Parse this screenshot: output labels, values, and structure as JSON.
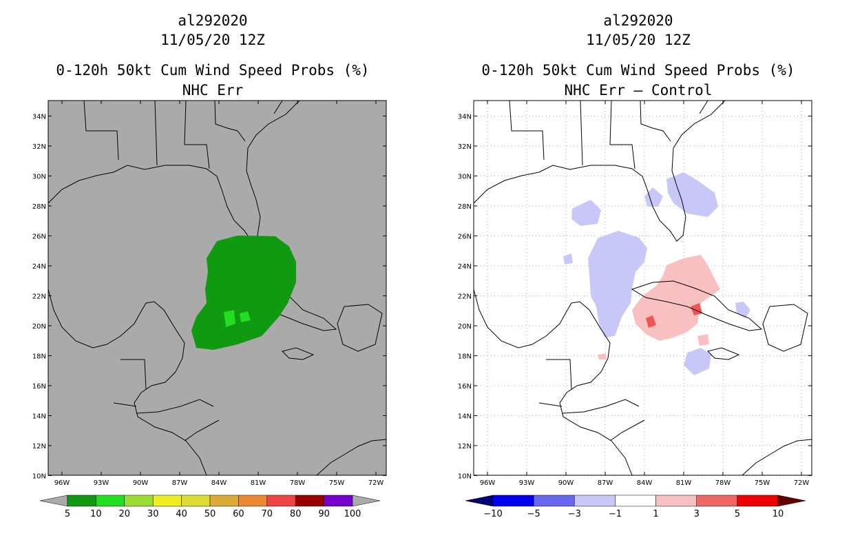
{
  "panels": [
    {
      "storm_id": "al292020",
      "datetime": "11/05/20 12Z",
      "title": "0-120h 50kt Cum Wind Speed Probs (%)",
      "subtitle": "NHC Err",
      "colors": {
        "background": "#aaaaaa",
        "fill": "#119911",
        "fill_core": "#22dd22"
      },
      "colorbar": {
        "labels": [
          "5",
          "10",
          "20",
          "30",
          "40",
          "50",
          "60",
          "70",
          "80",
          "90",
          "100"
        ],
        "colors": [
          "#aaaaaa",
          "#119911",
          "#22dd22",
          "#99dd33",
          "#eeee22",
          "#dddd33",
          "#ddaa33",
          "#ee8833",
          "#ee4444",
          "#990000",
          "#7700cc",
          "#aaaaaa"
        ]
      }
    },
    {
      "storm_id": "al292020",
      "datetime": "11/05/20 12Z",
      "title": "0-120h 50kt Cum Wind Speed Probs (%)",
      "subtitle": "NHC Err – Control",
      "colors": {
        "background": "#ffffff",
        "neg": "#c8c8f8",
        "pos": "#f8c0c0",
        "pos_core": "#ee5555"
      },
      "colorbar": {
        "labels": [
          "−10",
          "−5",
          "−3",
          "−1",
          "1",
          "3",
          "5",
          "10"
        ],
        "colors": [
          "#00007a",
          "#0000ee",
          "#6666ee",
          "#c8c8f8",
          "#ffffff",
          "#f8c0c0",
          "#ee6666",
          "#ee0000",
          "#660000"
        ]
      }
    }
  ],
  "axes": {
    "x_ticks": [
      "96W",
      "93W",
      "90W",
      "87W",
      "84W",
      "81W",
      "78W",
      "75W",
      "72W"
    ],
    "y_ticks": [
      "34N",
      "32N",
      "30N",
      "28N",
      "26N",
      "24N",
      "22N",
      "20N",
      "18N",
      "16N",
      "14N",
      "12N",
      "10N"
    ]
  }
}
